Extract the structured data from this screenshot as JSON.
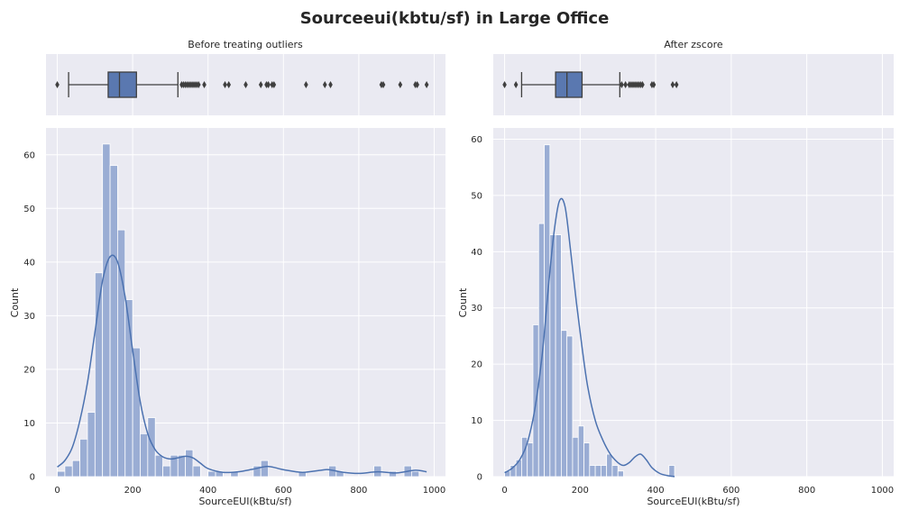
{
  "figure": {
    "title": "Sourceeui(kbtu/sf) in Large Office",
    "colors": {
      "axes_bg": "#eaeaf2",
      "grid": "#ffffff",
      "bar_fill": "#9aadd4",
      "bar_edge": "#ffffff",
      "kde_line": "#4c72b0",
      "box_fill": "#5a78b0",
      "box_edge": "#3f3f3f",
      "text": "#262626"
    }
  },
  "chart_data": [
    {
      "panel": "left",
      "type": "histogram",
      "title": "Before treating outliers",
      "xlabel": "SourceEUI(kBtu/sf)",
      "ylabel": "Count",
      "xlim": [
        -30,
        1030
      ],
      "ylim": [
        0,
        65
      ],
      "xticks": [
        0,
        200,
        400,
        600,
        800,
        1000
      ],
      "yticks": [
        0,
        10,
        20,
        30,
        40,
        50,
        60
      ],
      "bin_width": 20,
      "bins_start": 0,
      "counts": [
        1,
        2,
        3,
        7,
        12,
        38,
        62,
        58,
        46,
        33,
        24,
        8,
        11,
        4,
        2,
        4,
        4,
        5,
        2,
        0,
        1,
        1,
        0,
        1,
        0,
        0,
        2,
        3,
        0,
        0,
        0,
        0,
        1,
        0,
        0,
        0,
        2,
        1,
        0,
        0,
        0,
        0,
        2,
        0,
        1,
        0,
        2,
        1
      ],
      "kde": {
        "x": [
          0,
          20,
          40,
          60,
          80,
          100,
          120,
          140,
          160,
          180,
          200,
          220,
          240,
          260,
          280,
          300,
          320,
          340,
          360,
          380,
          400,
          440,
          480,
          520,
          560,
          600,
          650,
          700,
          720,
          760,
          800,
          850,
          900,
          950,
          980
        ],
        "y": [
          1.8,
          3.0,
          5.5,
          10.5,
          17.5,
          27.0,
          36.5,
          41.0,
          40.0,
          33.5,
          23.5,
          14.0,
          8.0,
          5.0,
          3.7,
          3.3,
          3.5,
          3.8,
          3.5,
          2.5,
          1.5,
          0.8,
          0.9,
          1.4,
          1.9,
          1.3,
          0.8,
          1.2,
          1.3,
          0.8,
          0.6,
          0.9,
          0.7,
          1.2,
          0.9
        ]
      },
      "boxplot": {
        "whisker_low": 30,
        "q1": 135,
        "median": 165,
        "q3": 210,
        "whisker_high": 320,
        "fliers": [
          0,
          330,
          335,
          340,
          345,
          350,
          355,
          360,
          365,
          370,
          375,
          390,
          445,
          455,
          500,
          540,
          555,
          560,
          570,
          575,
          660,
          710,
          725,
          860,
          865,
          910,
          950,
          955,
          980
        ]
      }
    },
    {
      "panel": "right",
      "type": "histogram",
      "title": "After zscore",
      "xlabel": "SourceEUI(kBtu/sf)",
      "ylabel": "Count",
      "xlim": [
        -30,
        1030
      ],
      "ylim": [
        0,
        62
      ],
      "xticks": [
        0,
        200,
        400,
        600,
        800,
        1000
      ],
      "yticks": [
        0,
        10,
        20,
        30,
        40,
        50,
        60
      ],
      "bin_width": 15,
      "bins_start": 0,
      "counts": [
        1,
        2,
        3,
        7,
        6,
        27,
        45,
        59,
        43,
        43,
        26,
        25,
        7,
        9,
        6,
        2,
        2,
        2,
        4,
        2,
        1,
        0,
        0,
        0,
        0,
        0,
        0,
        0,
        0,
        2
      ],
      "kde": {
        "x": [
          0,
          20,
          40,
          60,
          80,
          100,
          115,
          130,
          145,
          160,
          175,
          190,
          205,
          220,
          240,
          260,
          280,
          300,
          315,
          330,
          345,
          360,
          375,
          390,
          410,
          430,
          450
        ],
        "y": [
          0.7,
          1.5,
          3.0,
          6.0,
          12.0,
          22.0,
          33.0,
          43.0,
          49.0,
          48.0,
          40.0,
          31.0,
          23.0,
          16.0,
          10.0,
          6.5,
          4.0,
          2.5,
          2.0,
          2.5,
          3.5,
          4.0,
          3.0,
          1.6,
          0.6,
          0.2,
          0.0
        ]
      },
      "boxplot": {
        "whisker_low": 45,
        "q1": 135,
        "median": 165,
        "q3": 205,
        "whisker_high": 305,
        "fliers": [
          0,
          30,
          310,
          320,
          330,
          335,
          340,
          345,
          350,
          355,
          360,
          365,
          390,
          395,
          445,
          455
        ]
      }
    }
  ]
}
